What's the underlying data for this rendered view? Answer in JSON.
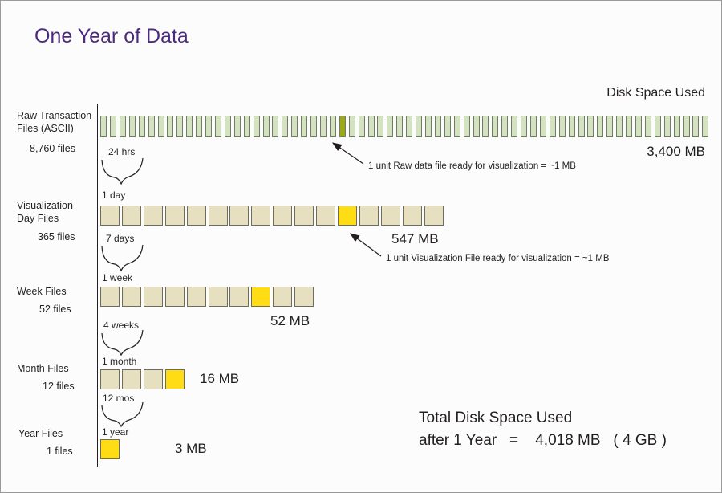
{
  "title": "One Year of Data",
  "disk_space_header": "Disk Space Used",
  "colors": {
    "title": "#4b2a80",
    "raw_box": "#d4e2c2",
    "raw_box_highlight": "#9aa81a",
    "file_box": "#e6dfc0",
    "file_box_highlight": "#ffdc14"
  },
  "rows": [
    {
      "label": "Raw Transaction Files (ASCII)",
      "count": "8,760 files",
      "units": 64,
      "highlight_index": 25,
      "size": "3,400 MB"
    },
    {
      "label": "Visualization Day Files",
      "count": "365 files",
      "units": 16,
      "highlight_index": 11,
      "size": "547 MB"
    },
    {
      "label": "Week Files",
      "count": "52 files",
      "units": 10,
      "highlight_index": 7,
      "size": "52 MB"
    },
    {
      "label": "Month Files",
      "count": "12 files",
      "units": 4,
      "highlight_index": 3,
      "size": "16 MB"
    },
    {
      "label": "Year Files",
      "count": "1 files",
      "units": 1,
      "highlight_index": 0,
      "size": "3 MB"
    }
  ],
  "aggregations": [
    {
      "period": "24 hrs",
      "unit": "1 day"
    },
    {
      "period": "7 days",
      "unit": "1 week"
    },
    {
      "period": "4 weeks",
      "unit": "1 month"
    },
    {
      "period": "12 mos",
      "unit": "1 year"
    }
  ],
  "annotations": {
    "raw": "1 unit Raw data file ready for visualization  =  ~1 MB",
    "viz": "1 unit  Visualization File ready for visualization  =  ~1 MB"
  },
  "total": {
    "line1": "Total Disk Space Used",
    "line2": "after 1 Year   =    4,018 MB   ( 4 GB )"
  }
}
